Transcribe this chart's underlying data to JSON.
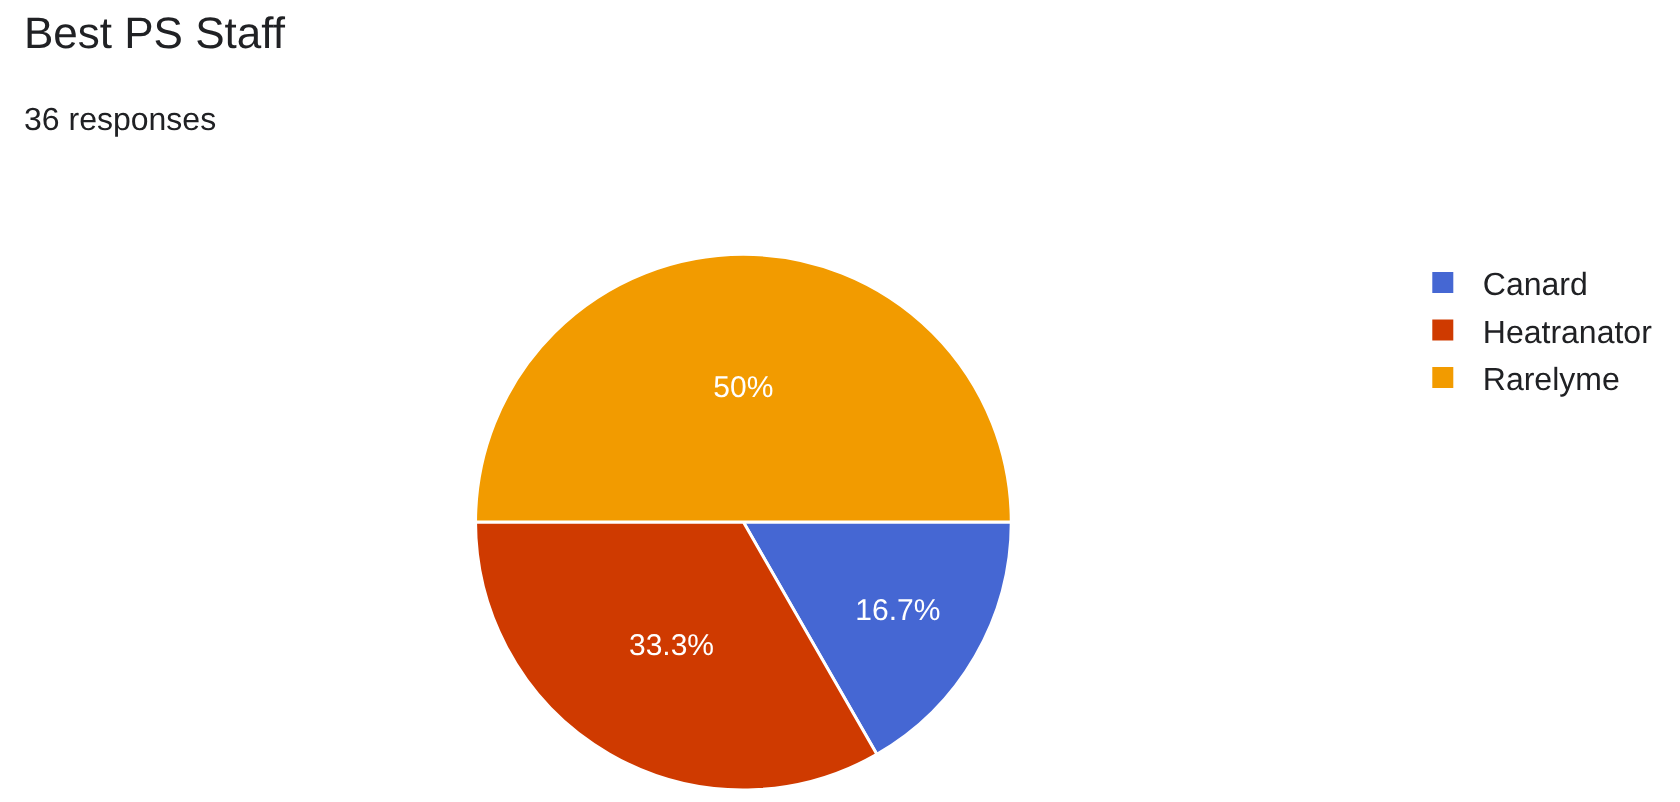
{
  "chart_data": {
    "type": "pie",
    "title": "Best PS Staff",
    "subtitle": "36 responses",
    "categories": [
      "Canard",
      "Heatranator",
      "Rarelyme"
    ],
    "values": [
      16.7,
      33.3,
      50
    ],
    "value_labels": [
      "16.7%",
      "33.3%",
      "50%"
    ],
    "colors": [
      "#4567d3",
      "#cf3a00",
      "#f29b00"
    ],
    "legend": "top right"
  }
}
